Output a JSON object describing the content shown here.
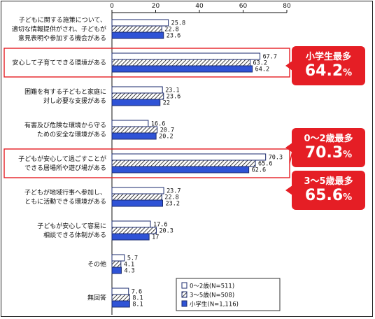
{
  "chart_data": {
    "type": "bar",
    "orientation": "horizontal",
    "xlim": [
      0,
      80
    ],
    "ticks": [
      0,
      20,
      40,
      60,
      80
    ],
    "categories": [
      [
        "子どもに関する施策について、",
        "適切な情報提供がされ、子どもが",
        "意見表明や参加する機会がある"
      ],
      [
        "安心して子育てできる環境がある"
      ],
      [
        "困難を有する子どもと家庭に",
        "対し必要な支援がある"
      ],
      [
        "有害及び危険な環境から守る",
        "ための安全な環境がある"
      ],
      [
        "子どもが安心して過ごすことが",
        "できる居場所や遊び場がある"
      ],
      [
        "子どもが地域行事へ参加し、",
        "ともに活動できる環境がある"
      ],
      [
        "子どもが安心して容易に",
        "相談できる体制がある"
      ],
      [
        "その他"
      ],
      [
        "無回答"
      ]
    ],
    "series": [
      {
        "name": "0～2歳(N=511)",
        "pattern": "white",
        "values": [
          25.8,
          67.7,
          23.1,
          16.6,
          70.3,
          23.7,
          17.6,
          5.7,
          7.6
        ]
      },
      {
        "name": "3～5歳(N=508)",
        "pattern": "hatched",
        "values": [
          22.8,
          63.2,
          23.6,
          20.7,
          65.6,
          22.8,
          20.3,
          4.1,
          8.1
        ]
      },
      {
        "name": "小学生(N=1,116)",
        "pattern": "blue",
        "values": [
          23.6,
          64.2,
          22,
          20.2,
          62.6,
          23.2,
          17,
          4.3,
          8.1
        ]
      }
    ],
    "value_labels": [
      [
        "25.8",
        "22.8",
        "23.6"
      ],
      [
        "67.7",
        "63.2",
        "64.2"
      ],
      [
        "23.1",
        "23.6",
        "22"
      ],
      [
        "16.6",
        "20.7",
        "20.2"
      ],
      [
        "70.3",
        "65.6",
        "62.6"
      ],
      [
        "23.7",
        "22.8",
        "23.2"
      ],
      [
        "17.6",
        "20.3",
        "17"
      ],
      [
        "5.7",
        "4.1",
        "4.3"
      ],
      [
        "7.6",
        "8.1",
        "8.1"
      ]
    ],
    "highlighted_categories": [
      1,
      4
    ],
    "legend_position": "bottom-right",
    "colors": {
      "blue": "#2f53d6",
      "outline": "#1a2a6c",
      "accent": "#e51e25"
    }
  },
  "callouts": [
    {
      "title": "小学生最多",
      "value": "64.2",
      "unit": "%"
    },
    {
      "title": "0～2歳最多",
      "value": "70.3",
      "unit": "%"
    },
    {
      "title": "3～5歳最多",
      "value": "65.6",
      "unit": "%"
    }
  ]
}
